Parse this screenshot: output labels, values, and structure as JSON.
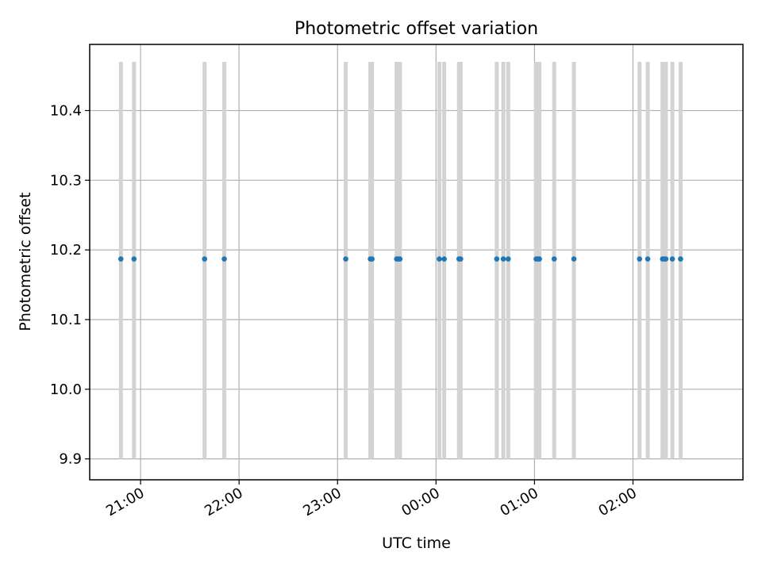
{
  "chart_data": {
    "type": "scatter",
    "title": "Photometric offset variation",
    "xlabel": "UTC time",
    "ylabel": "Photometric offset",
    "x_axis": {
      "type": "time",
      "range": [
        "20:29",
        "03:07"
      ]
    },
    "xticks": [
      {
        "value": "21:00",
        "label": "21:00"
      },
      {
        "value": "22:00",
        "label": "22:00"
      },
      {
        "value": "23:00",
        "label": "23:00"
      },
      {
        "value": "00:00",
        "label": "00:00"
      },
      {
        "value": "01:00",
        "label": "01:00"
      },
      {
        "value": "02:00",
        "label": "02:00"
      }
    ],
    "ylim": [
      9.87,
      10.495
    ],
    "yticks": [
      {
        "value": 9.9,
        "label": "9.9"
      },
      {
        "value": 10.0,
        "label": "10.0"
      },
      {
        "value": 10.1,
        "label": "10.1"
      },
      {
        "value": 10.2,
        "label": "10.2"
      },
      {
        "value": 10.3,
        "label": "10.3"
      },
      {
        "value": 10.4,
        "label": "10.4"
      }
    ],
    "grid": true,
    "series": [
      {
        "color": "#1f77b4",
        "points": [
          {
            "x": "20:48",
            "y": 10.187
          },
          {
            "x": "20:56",
            "y": 10.187
          },
          {
            "x": "21:39",
            "y": 10.187
          },
          {
            "x": "21:51",
            "y": 10.187
          },
          {
            "x": "23:05",
            "y": 10.187
          },
          {
            "x": "23:20",
            "y": 10.187
          },
          {
            "x": "23:21",
            "y": 10.187
          },
          {
            "x": "23:36",
            "y": 10.187
          },
          {
            "x": "23:37",
            "y": 10.187
          },
          {
            "x": "23:38",
            "y": 10.187
          },
          {
            "x": "00:02",
            "y": 10.187
          },
          {
            "x": "00:05",
            "y": 10.187
          },
          {
            "x": "00:14",
            "y": 10.187
          },
          {
            "x": "00:15",
            "y": 10.187
          },
          {
            "x": "00:37",
            "y": 10.187
          },
          {
            "x": "00:41",
            "y": 10.187
          },
          {
            "x": "00:44",
            "y": 10.187
          },
          {
            "x": "01:01",
            "y": 10.187
          },
          {
            "x": "01:02",
            "y": 10.187
          },
          {
            "x": "01:03",
            "y": 10.187
          },
          {
            "x": "01:12",
            "y": 10.187
          },
          {
            "x": "01:24",
            "y": 10.187
          },
          {
            "x": "02:04",
            "y": 10.187
          },
          {
            "x": "02:09",
            "y": 10.187
          },
          {
            "x": "02:18",
            "y": 10.187
          },
          {
            "x": "02:19",
            "y": 10.187
          },
          {
            "x": "02:20",
            "y": 10.187
          },
          {
            "x": "02:24",
            "y": 10.187
          },
          {
            "x": "02:29",
            "y": 10.187
          }
        ]
      }
    ],
    "error_bars": {
      "color": "#d3d3d3",
      "low": 9.9,
      "high": 10.47
    }
  }
}
